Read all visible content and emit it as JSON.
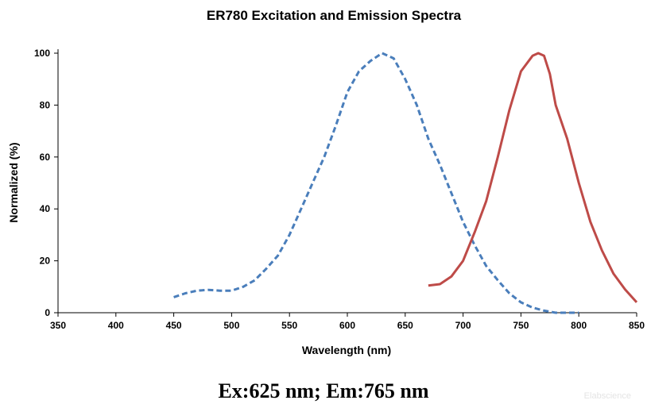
{
  "chart_data": {
    "type": "line",
    "title": "ER780 Excitation and Emission Spectra",
    "xlabel": "Wavelength (nm)",
    "ylabel": "Normalized (%)",
    "xlim": [
      350,
      850
    ],
    "ylim": [
      0,
      100
    ],
    "xticks": [
      350,
      400,
      450,
      500,
      550,
      600,
      650,
      700,
      750,
      800,
      850
    ],
    "yticks": [
      0,
      20,
      40,
      60,
      80,
      100
    ],
    "grid": false,
    "legend": "none",
    "series": [
      {
        "color": "#4a7ebb",
        "style": "dashed",
        "points": [
          [
            450,
            6
          ],
          [
            460,
            7.5
          ],
          [
            470,
            8.5
          ],
          [
            480,
            8.8
          ],
          [
            490,
            8.5
          ],
          [
            500,
            8.5
          ],
          [
            510,
            10
          ],
          [
            520,
            12.5
          ],
          [
            530,
            17
          ],
          [
            540,
            22
          ],
          [
            550,
            30
          ],
          [
            560,
            40
          ],
          [
            570,
            50
          ],
          [
            580,
            60
          ],
          [
            590,
            72
          ],
          [
            600,
            85
          ],
          [
            610,
            93
          ],
          [
            620,
            97
          ],
          [
            630,
            100
          ],
          [
            640,
            98
          ],
          [
            650,
            90
          ],
          [
            660,
            80
          ],
          [
            670,
            67
          ],
          [
            680,
            57
          ],
          [
            690,
            46
          ],
          [
            700,
            35
          ],
          [
            710,
            26
          ],
          [
            720,
            18
          ],
          [
            730,
            12.5
          ],
          [
            740,
            7.5
          ],
          [
            750,
            4
          ],
          [
            760,
            2
          ],
          [
            770,
            0.8
          ],
          [
            780,
            0
          ],
          [
            790,
            0
          ],
          [
            800,
            0
          ]
        ]
      },
      {
        "color": "#be4b48",
        "style": "solid",
        "points": [
          [
            670,
            10.5
          ],
          [
            680,
            11
          ],
          [
            690,
            14
          ],
          [
            700,
            20
          ],
          [
            710,
            31
          ],
          [
            720,
            43
          ],
          [
            730,
            60
          ],
          [
            740,
            78
          ],
          [
            750,
            93
          ],
          [
            760,
            99
          ],
          [
            765,
            100
          ],
          [
            770,
            99
          ],
          [
            775,
            92
          ],
          [
            780,
            80
          ],
          [
            790,
            67
          ],
          [
            800,
            50
          ],
          [
            810,
            35
          ],
          [
            820,
            24
          ],
          [
            830,
            15
          ],
          [
            840,
            9
          ],
          [
            850,
            4
          ]
        ]
      }
    ]
  },
  "caption": "Ex:625 nm; Em:765 nm",
  "watermark": "Elabscience"
}
